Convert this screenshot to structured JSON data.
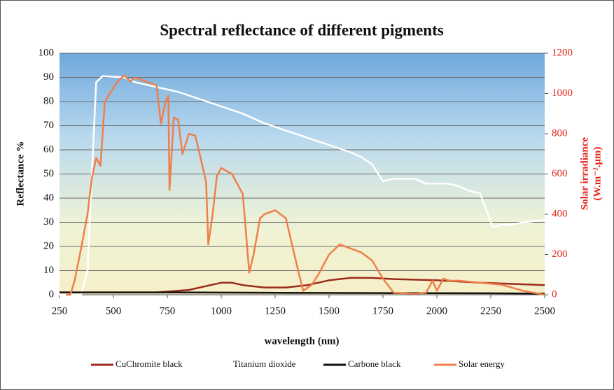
{
  "chart_data": {
    "type": "line",
    "title": "Spectral reflectance of different pigments",
    "xlabel": "wavelength (nm)",
    "ylabel": "Reflectance %",
    "y2label": [
      "Solar irradiance",
      "(W.m⁻².μm)"
    ],
    "xlim": [
      250,
      2500
    ],
    "xticks": [
      250,
      500,
      750,
      1000,
      1250,
      1500,
      1750,
      2000,
      2250,
      2500
    ],
    "ylim": [
      0,
      100
    ],
    "yticks": [
      0,
      10,
      20,
      30,
      40,
      50,
      60,
      70,
      80,
      90,
      100
    ],
    "y2lim": [
      0,
      1200
    ],
    "y2ticks": [
      0,
      200,
      400,
      600,
      800,
      1000,
      1200
    ],
    "grid": true,
    "legend": "bottom",
    "series": [
      {
        "name": "CuChromite black",
        "color": "#9b2a1c",
        "x": [
          250,
          500,
          700,
          850,
          950,
          1000,
          1050,
          1100,
          1200,
          1300,
          1400,
          1500,
          1600,
          1700,
          1800,
          2000,
          2200,
          2500
        ],
        "values": [
          1,
          1,
          1,
          2,
          4,
          5,
          5,
          4,
          3,
          3,
          4,
          6,
          7,
          7,
          6.5,
          6,
          5,
          4
        ]
      },
      {
        "name": "Titanium dioxide",
        "color": "#ffffff",
        "x": [
          250,
          350,
          380,
          400,
          420,
          450,
          550,
          600,
          700,
          800,
          900,
          1000,
          1100,
          1200,
          1300,
          1400,
          1500,
          1600,
          1650,
          1700,
          1750,
          1800,
          1900,
          1950,
          2050,
          2100,
          2150,
          2200,
          2230,
          2260,
          2300,
          2350,
          2400,
          2500
        ],
        "values": [
          0,
          0,
          10,
          50,
          88,
          90.5,
          90,
          88,
          86,
          84,
          81,
          78,
          75,
          71,
          68,
          65,
          62,
          59,
          57,
          54,
          47,
          48,
          48,
          46,
          46,
          45,
          43,
          42,
          35,
          28,
          29,
          29,
          30,
          31
        ]
      },
      {
        "name": "Carbone black",
        "color": "#111111",
        "x": [
          250,
          750,
          1250,
          1750,
          2250,
          2500
        ],
        "values": [
          1,
          1,
          0.8,
          0.7,
          0.6,
          0.5
        ]
      },
      {
        "name": "Solar energy",
        "color": "#ef7f4a",
        "axis": "y2",
        "x": [
          280,
          300,
          320,
          350,
          380,
          400,
          420,
          440,
          460,
          490,
          520,
          550,
          580,
          600,
          650,
          700,
          720,
          740,
          755,
          760,
          780,
          800,
          820,
          850,
          880,
          900,
          930,
          940,
          960,
          980,
          1000,
          1050,
          1100,
          1130,
          1150,
          1180,
          1200,
          1250,
          1300,
          1350,
          1380,
          1420,
          1450,
          1500,
          1550,
          1600,
          1650,
          1700,
          1750,
          1800,
          1900,
          1950,
          1980,
          2000,
          2030,
          2060,
          2100,
          2200,
          2300,
          2400,
          2500
        ],
        "values": [
          0,
          0,
          70,
          230,
          400,
          580,
          680,
          640,
          960,
          1010,
          1060,
          1090,
          1060,
          1080,
          1060,
          1040,
          850,
          950,
          990,
          520,
          880,
          870,
          700,
          800,
          790,
          700,
          560,
          250,
          400,
          590,
          630,
          600,
          500,
          110,
          200,
          380,
          400,
          420,
          380,
          150,
          20,
          50,
          100,
          200,
          250,
          230,
          210,
          170,
          80,
          10,
          5,
          10,
          70,
          20,
          80,
          70,
          70,
          60,
          50,
          20,
          0
        ]
      }
    ]
  }
}
